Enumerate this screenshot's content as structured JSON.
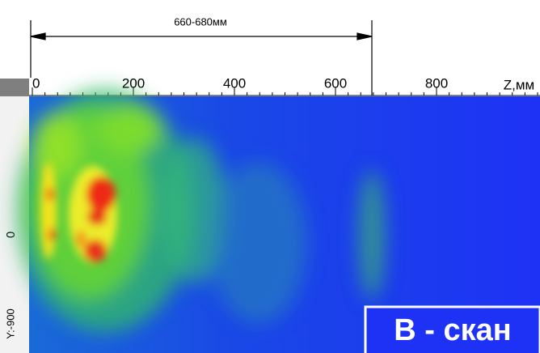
{
  "dimension": {
    "label": "660-680мм"
  },
  "z_axis": {
    "ticks": [
      "0",
      "200",
      "400",
      "600",
      "800"
    ],
    "label": "Z,мм"
  },
  "y_axis": {
    "ticks": [
      "0",
      "Y:-900"
    ]
  },
  "badge": {
    "label": "B - скан"
  }
}
